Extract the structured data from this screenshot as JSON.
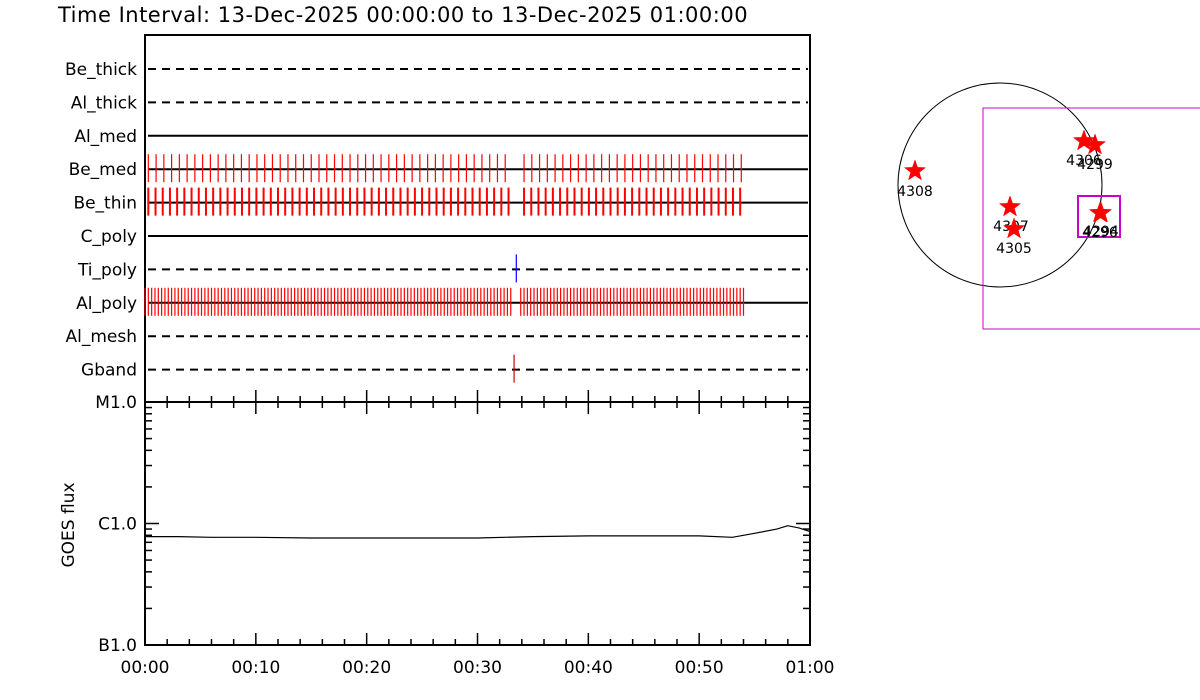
{
  "title": "Time Interval: 13-Dec-2025 00:00:00 to 13-Dec-2025 01:00:00",
  "colors": {
    "exposure_tick": "#ff0000",
    "ti_poly_tick": "#0000ff",
    "gband_tick": "#cc0000",
    "star": "#ff0000",
    "fov_box": "#cc00cc",
    "axis": "#000000"
  },
  "chart_data": [
    {
      "type": "timeline",
      "x_range_minutes": [
        0,
        60
      ],
      "filters": [
        {
          "label": "Be_thick",
          "line_style": "dashed",
          "exposures_min": []
        },
        {
          "label": "Al_thick",
          "line_style": "dashed",
          "exposures_min": []
        },
        {
          "label": "Al_med",
          "line_style": "solid",
          "exposures_min": []
        },
        {
          "label": "Be_med",
          "line_style": "solid",
          "exposure_color": "#ff0000",
          "exposures_min": [
            0.3,
            1.0,
            1.7,
            2.4,
            3.1,
            3.8,
            4.5,
            5.2,
            5.9,
            6.6,
            7.3,
            8.0,
            8.7,
            9.4,
            10.1,
            10.8,
            11.5,
            12.2,
            12.9,
            13.6,
            14.3,
            15.0,
            15.7,
            16.4,
            17.1,
            17.8,
            18.5,
            19.2,
            19.9,
            20.6,
            21.3,
            22.0,
            22.7,
            23.4,
            24.1,
            24.8,
            25.5,
            26.2,
            26.9,
            27.6,
            28.3,
            29.0,
            29.7,
            30.4,
            31.1,
            31.8,
            32.5,
            34.2,
            34.9,
            35.6,
            36.3,
            37.0,
            37.7,
            38.4,
            39.1,
            39.8,
            40.5,
            41.2,
            41.9,
            42.6,
            43.3,
            44.0,
            44.7,
            45.4,
            46.1,
            46.8,
            47.5,
            48.2,
            48.9,
            49.6,
            50.3,
            51.0,
            51.7,
            52.4,
            53.1,
            53.8
          ]
        },
        {
          "label": "Be_thin",
          "line_style": "solid",
          "exposure_color": "#ff0000",
          "exposures_min": [
            0.3,
            0.95,
            1.6,
            2.25,
            2.9,
            3.55,
            4.2,
            4.85,
            5.5,
            6.15,
            6.8,
            7.45,
            8.1,
            8.75,
            9.4,
            10.05,
            10.7,
            11.35,
            12.0,
            12.65,
            13.3,
            13.95,
            14.6,
            15.25,
            15.9,
            16.55,
            17.2,
            17.85,
            18.5,
            19.15,
            19.8,
            20.45,
            21.1,
            21.75,
            22.4,
            23.05,
            23.7,
            24.35,
            25.0,
            25.65,
            26.3,
            26.95,
            27.6,
            28.25,
            28.9,
            29.55,
            30.2,
            30.85,
            31.5,
            32.15,
            32.8,
            34.2,
            34.85,
            35.5,
            36.15,
            36.8,
            37.45,
            38.1,
            38.75,
            39.4,
            40.05,
            40.7,
            41.35,
            42.0,
            42.65,
            43.3,
            43.95,
            44.6,
            45.25,
            45.9,
            46.55,
            47.2,
            47.85,
            48.5,
            49.15,
            49.8,
            50.45,
            51.1,
            51.75,
            52.4,
            53.05,
            53.7
          ]
        },
        {
          "label": "C_poly",
          "line_style": "solid",
          "exposures_min": []
        },
        {
          "label": "Ti_poly",
          "line_style": "dashed",
          "exposure_color": "#0000ff",
          "exposures_min": [
            33.5
          ]
        },
        {
          "label": "Al_poly",
          "line_style": "solid",
          "exposure_color": "#ff0000",
          "exposures_min": [
            0.0,
            0.3,
            0.6,
            0.9,
            1.2,
            1.5,
            1.8,
            2.1,
            2.4,
            2.7,
            3.0,
            3.3,
            3.6,
            3.9,
            4.2,
            4.5,
            4.8,
            5.1,
            5.4,
            5.7,
            6.0,
            6.3,
            6.6,
            6.9,
            7.2,
            7.5,
            7.8,
            8.1,
            8.4,
            8.7,
            9.0,
            9.3,
            9.6,
            9.9,
            10.2,
            10.5,
            10.8,
            11.1,
            11.4,
            11.7,
            12.0,
            12.3,
            12.6,
            12.9,
            13.2,
            13.5,
            13.8,
            14.1,
            14.4,
            14.7,
            15.0,
            15.3,
            15.6,
            15.9,
            16.2,
            16.5,
            16.8,
            17.1,
            17.4,
            17.7,
            18.0,
            18.3,
            18.6,
            18.9,
            19.2,
            19.5,
            19.8,
            20.1,
            20.4,
            20.7,
            21.0,
            21.3,
            21.6,
            21.9,
            22.2,
            22.5,
            22.8,
            23.1,
            23.4,
            23.7,
            24.0,
            24.3,
            24.6,
            24.9,
            25.2,
            25.5,
            25.8,
            26.1,
            26.4,
            26.7,
            27.0,
            27.3,
            27.6,
            27.9,
            28.2,
            28.5,
            28.8,
            29.1,
            29.4,
            29.7,
            30.0,
            30.3,
            30.6,
            30.9,
            31.2,
            31.5,
            31.8,
            32.1,
            32.4,
            32.7,
            33.0,
            33.9,
            34.2,
            34.5,
            34.8,
            35.1,
            35.4,
            35.7,
            36.0,
            36.3,
            36.6,
            36.9,
            37.2,
            37.5,
            37.8,
            38.1,
            38.4,
            38.7,
            39.0,
            39.3,
            39.6,
            39.9,
            40.2,
            40.5,
            40.8,
            41.1,
            41.4,
            41.7,
            42.0,
            42.3,
            42.6,
            42.9,
            43.2,
            43.5,
            43.8,
            44.1,
            44.4,
            44.7,
            45.0,
            45.3,
            45.6,
            45.9,
            46.2,
            46.5,
            46.8,
            47.1,
            47.4,
            47.7,
            48.0,
            48.3,
            48.6,
            48.9,
            49.2,
            49.5,
            49.8,
            50.1,
            50.4,
            50.7,
            51.0,
            51.3,
            51.6,
            51.9,
            52.2,
            52.5,
            52.8,
            53.1,
            53.4,
            53.7,
            54.0
          ]
        },
        {
          "label": "Al_mesh",
          "line_style": "dashed",
          "exposures_min": []
        },
        {
          "label": "Gband",
          "line_style": "dashed",
          "exposure_color": "#cc0000",
          "exposures_min": [
            33.3
          ]
        }
      ]
    },
    {
      "type": "line",
      "ylabel": "GOES flux",
      "yscale": "log",
      "y_tick_labels": [
        {
          "label": "B1.0",
          "value": 1e-07
        },
        {
          "label": "C1.0",
          "value": 1e-06
        },
        {
          "label": "M1.0",
          "value": 1e-05
        }
      ],
      "ylim": [
        1e-07,
        1e-05
      ],
      "xlim_minutes": [
        0,
        60
      ],
      "x_tick_labels": [
        "00:00",
        "00:10",
        "00:20",
        "00:30",
        "00:40",
        "00:50",
        "01:00"
      ],
      "series": [
        {
          "x_min": [
            0,
            3,
            6,
            10,
            15,
            20,
            25,
            30,
            35,
            40,
            45,
            50,
            53,
            55,
            57,
            58,
            59,
            60
          ],
          "y": [
            7.8e-07,
            7.8e-07,
            7.7e-07,
            7.7e-07,
            7.6e-07,
            7.6e-07,
            7.6e-07,
            7.6e-07,
            7.8e-07,
            7.9e-07,
            7.9e-07,
            7.9e-07,
            7.7e-07,
            8.3e-07,
            9e-07,
            9.6e-07,
            9.2e-07,
            8.6e-07
          ]
        }
      ]
    },
    {
      "type": "scatter",
      "description_labels": "active region markers on solar disk",
      "regions": [
        {
          "label": "4308"
        },
        {
          "label": "4307"
        },
        {
          "label": "4305"
        },
        {
          "label": "4306"
        },
        {
          "label": "4299"
        },
        {
          "label": "4296"
        },
        {
          "label": "4294"
        }
      ]
    }
  ]
}
